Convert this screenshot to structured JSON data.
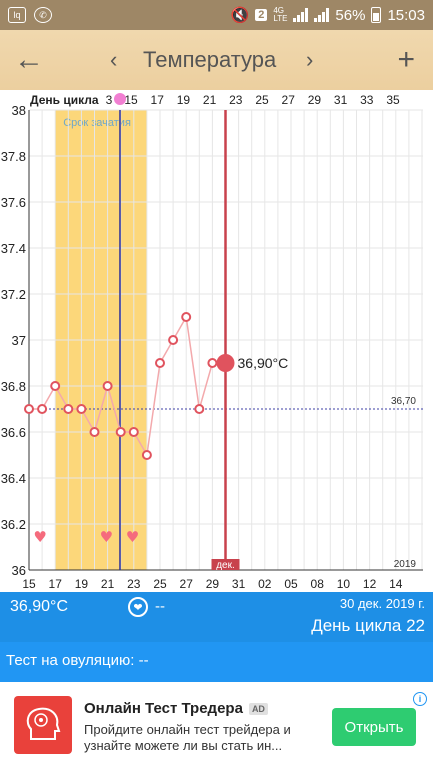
{
  "status": {
    "badge": "2",
    "net1": "4G",
    "net2": "LTE",
    "battery": "56%",
    "time": "15:03"
  },
  "appbar": {
    "back_icon": "arrow-left",
    "prev_icon": "chevron-left",
    "title": "Температура",
    "next_icon": "chevron-right",
    "add_icon": "plus"
  },
  "chart_data": {
    "type": "line",
    "title": "",
    "top_axis_label": "День цикла",
    "top_ticks": [
      "3",
      "15",
      "17",
      "19",
      "21",
      "23",
      "25",
      "27",
      "29",
      "31",
      "33",
      "35"
    ],
    "y_ticks": [
      "38",
      "37.8",
      "37.6",
      "37.4",
      "37.2",
      "37",
      "36.8",
      "36.6",
      "36.4",
      "36.2",
      "36"
    ],
    "ylim": [
      36,
      38
    ],
    "x_ticks": [
      "15",
      "17",
      "19",
      "21",
      "23",
      "25",
      "27",
      "29",
      "31",
      "02",
      "05",
      "08",
      "10",
      "12",
      "14"
    ],
    "fertile_label": "Срок зачатия",
    "baseline_value": 36.7,
    "baseline_label": "36,70",
    "year_label": "2019",
    "month_label": "дек.",
    "selected_label": "36,90°C",
    "points": [
      36.7,
      36.7,
      36.8,
      36.7,
      36.7,
      36.6,
      36.8,
      36.6,
      36.6,
      36.5,
      36.9,
      37.0,
      37.1,
      36.7,
      36.9,
      36.9
    ],
    "colors": {
      "line": "#f3a9ac",
      "marker": "#e0535e",
      "fertile": "#fcd36b",
      "selected_line": "#c8424d",
      "blue_line": "#2a2e98",
      "heart": "#f56b7d"
    }
  },
  "info": {
    "temp": "36,90°C",
    "sex": "--",
    "date": "30 дек. 2019 г.",
    "cycle_day": "День цикла 22"
  },
  "ovulation": {
    "text": "Тест на овуляцию: --"
  },
  "ad": {
    "title": "Онлайн Тест Тредера",
    "tag": "AD",
    "body": "Пройдите онлайн тест трейдера и узнайте можете ли вы стать ин...",
    "button": "Открыть"
  }
}
